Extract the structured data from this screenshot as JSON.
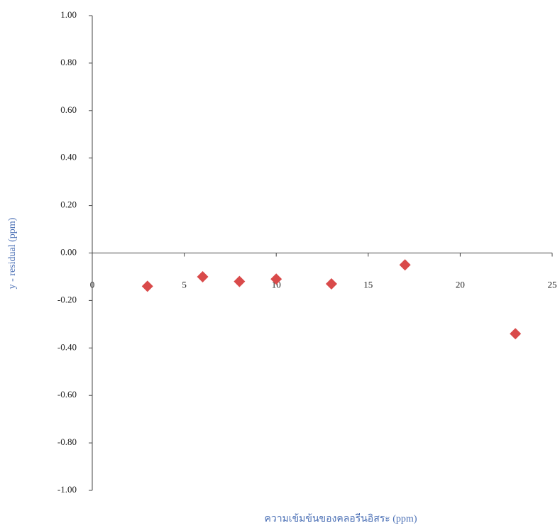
{
  "chart_data": {
    "type": "scatter",
    "x_label": "ความเข้มข้นของคลอรีนอิสระ (ppm)",
    "y_label": "y - residual (ppm)",
    "series": [
      {
        "color": "#d94a4a",
        "x": [
          3,
          6,
          8,
          10,
          13,
          17,
          23
        ],
        "values": [
          -0.14,
          -0.1,
          -0.12,
          -0.11,
          -0.13,
          -0.05,
          -0.34
        ]
      }
    ],
    "xlim": [
      0,
      25
    ],
    "xticks": [
      0,
      5,
      10,
      15,
      20,
      25
    ],
    "ylim": [
      -1,
      1
    ],
    "yticks": [
      {
        "value": 1,
        "label": "1.00"
      },
      {
        "value": 0.8,
        "label": "0.80"
      },
      {
        "value": 0.6,
        "label": "0.60"
      },
      {
        "value": 0.4,
        "label": "0.40"
      },
      {
        "value": 0.2,
        "label": "0.20"
      },
      {
        "value": 0,
        "label": "0.00"
      },
      {
        "value": -0.2,
        "label": "-0.20"
      },
      {
        "value": -0.4,
        "label": "-0.40"
      },
      {
        "value": -0.6,
        "label": "-0.60"
      },
      {
        "value": -0.8,
        "label": "-0.80"
      },
      {
        "value": -1,
        "label": "-1.00"
      }
    ],
    "grid": false
  }
}
